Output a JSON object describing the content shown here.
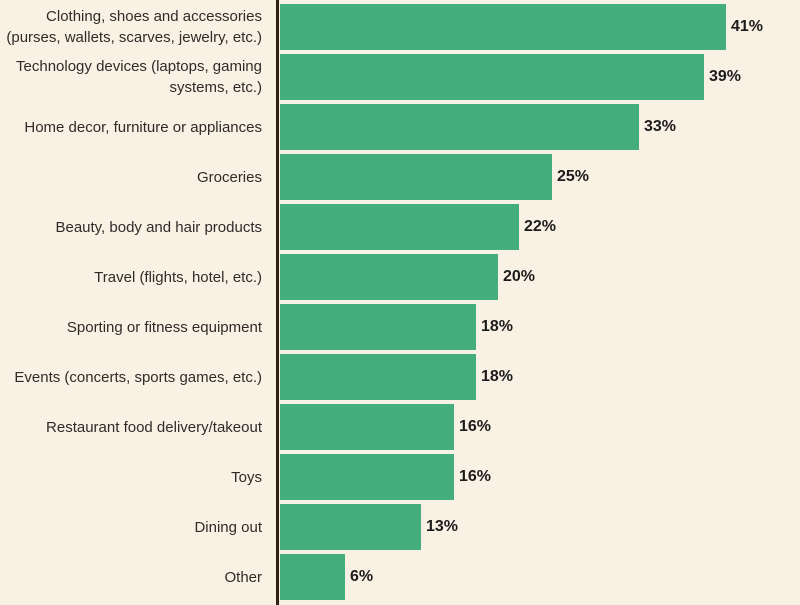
{
  "chart_data": {
    "type": "bar",
    "orientation": "horizontal",
    "title": "",
    "xlabel": "",
    "ylabel": "",
    "grid": false,
    "legend": false,
    "xlim": [
      0,
      47.8
    ],
    "value_suffix": "%",
    "categories": [
      "Clothing, shoes and accessories\n(purses, wallets, scarves, jewelry, etc.)",
      "Technology devices (laptops, gaming\nsystems, etc.)",
      "Home decor, furniture or appliances",
      "Groceries",
      "Beauty, body and hair products",
      "Travel (flights, hotel, etc.)",
      "Sporting or fitness equipment",
      "Events (concerts, sports games, etc.)",
      "Restaurant food delivery/takeout",
      "Toys",
      "Dining out",
      "Other"
    ],
    "values": [
      41,
      39,
      33,
      25,
      22,
      20,
      18,
      18,
      16,
      16,
      13,
      6
    ],
    "value_labels": [
      "41%",
      "39%",
      "33%",
      "25%",
      "22%",
      "20%",
      "18%",
      "18%",
      "16%",
      "16%",
      "13%",
      "6%"
    ],
    "colors": {
      "background": "#faf1e5",
      "bar": "#44ad7c",
      "axis_line": "#302015",
      "category_label": "#2f2b28",
      "value_label": "#1c1c1c"
    }
  }
}
